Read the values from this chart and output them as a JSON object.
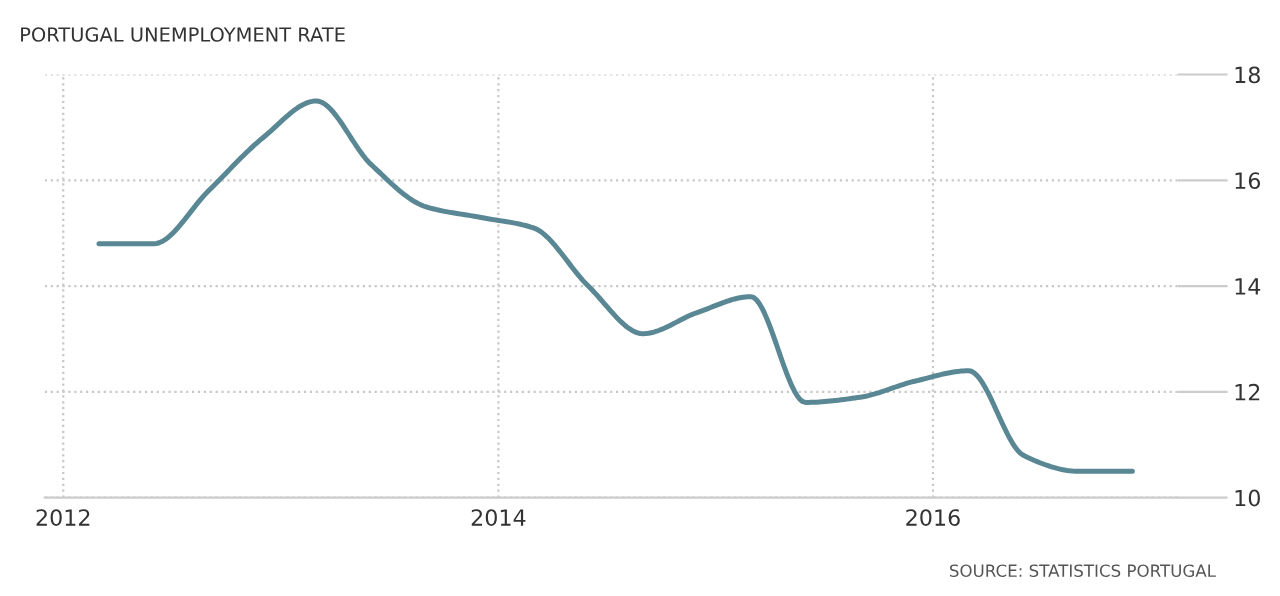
{
  "chart_data": {
    "type": "line",
    "title": "PORTUGAL UNEMPLOYMENT RATE",
    "x": [
      "2012-03",
      "2012-06",
      "2012-09",
      "2012-12",
      "2013-03",
      "2013-06",
      "2013-09",
      "2013-12",
      "2014-03",
      "2014-06",
      "2014-09",
      "2014-12",
      "2015-03",
      "2015-06",
      "2015-09",
      "2015-12",
      "2016-03",
      "2016-06",
      "2016-09",
      "2016-12"
    ],
    "series": [
      {
        "color": "#5a8794",
        "values": [
          14.8,
          14.8,
          15.8,
          16.8,
          17.5,
          16.3,
          15.5,
          15.3,
          15.1,
          14.0,
          13.1,
          13.5,
          13.8,
          11.8,
          11.9,
          12.2,
          12.4,
          10.8,
          10.5,
          10.5
        ]
      }
    ],
    "xlim": [
      "2011-12",
      "2017-02-15"
    ],
    "xticks": [
      "2012",
      "2014",
      "2016"
    ],
    "ylim": [
      10,
      18
    ],
    "yticks": [
      10,
      12,
      14,
      16,
      18
    ],
    "grid": true,
    "legend": false,
    "marker": "none",
    "line_style": "solid",
    "annotations": [
      "SOURCE: STATISTICS PORTUGAL"
    ]
  }
}
